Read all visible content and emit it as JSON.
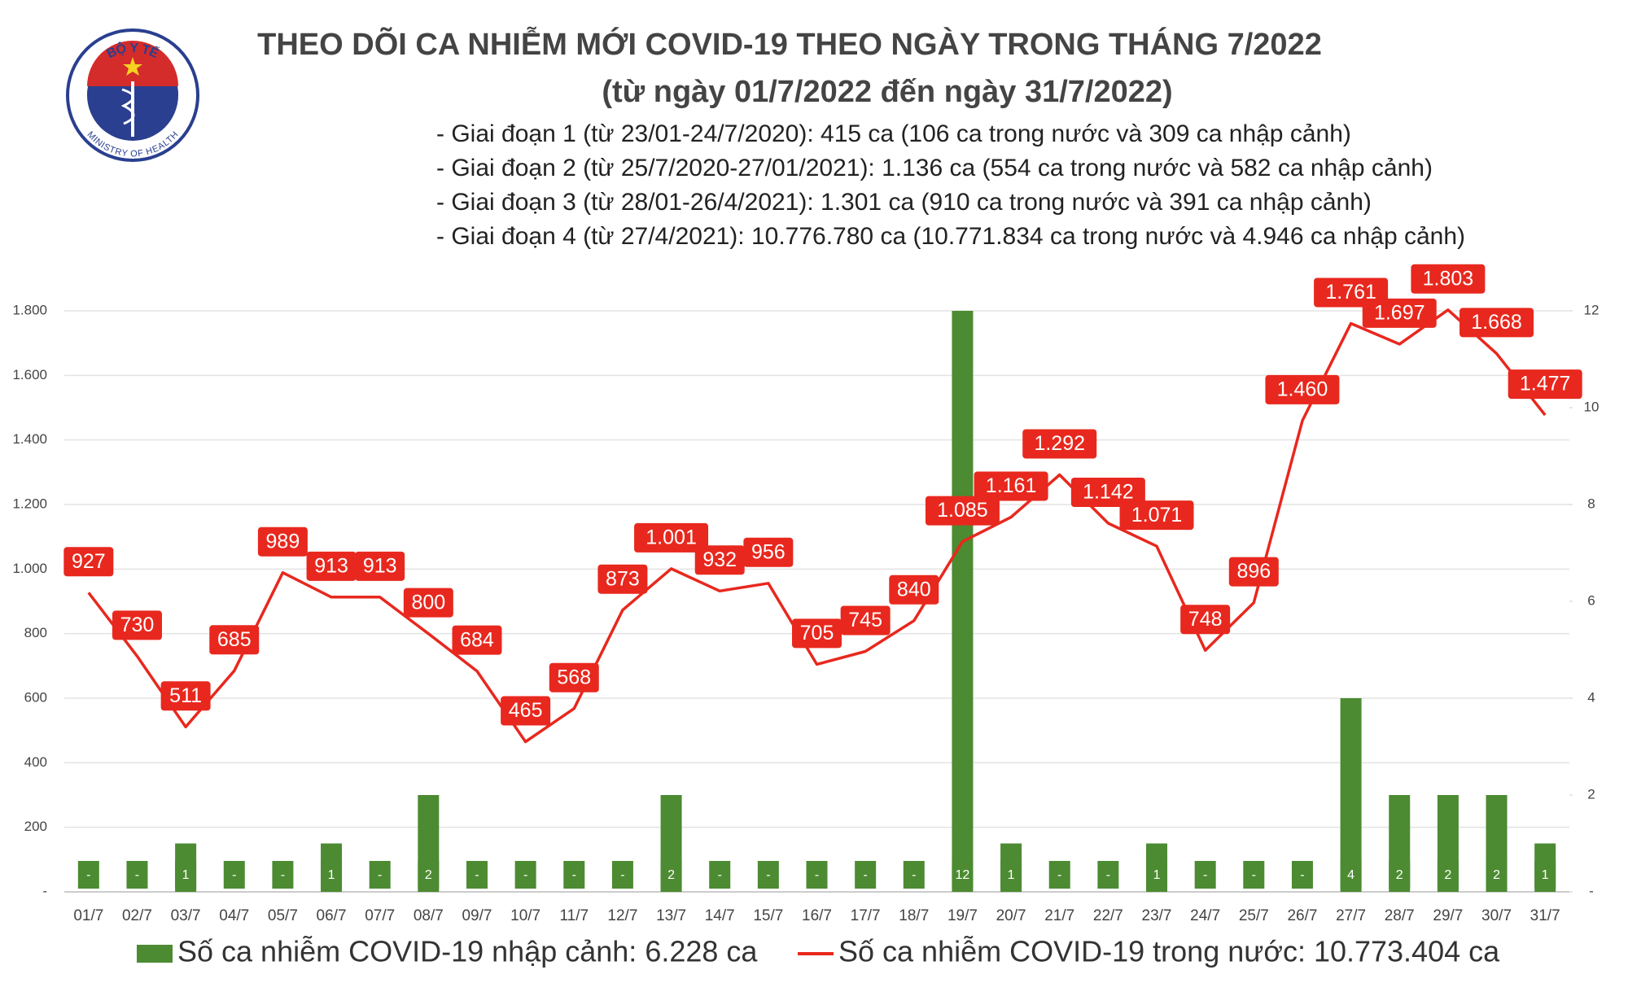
{
  "logo": {
    "top": "BỘ Y TẾ",
    "bottom": "MINISTRY OF HEALTH"
  },
  "chart_data": {
    "type": "bar",
    "title": "THEO DÕI CA NHIỄM MỚI COVID-19 THEO NGÀY TRONG THÁNG 7/2022",
    "subtitle": "(từ ngày 01/7/2022 đến ngày 31/7/2022)",
    "notes": [
      "- Giai đoạn 1 (từ 23/01-24/7/2020): 415 ca (106 ca trong nước và 309 ca nhập cảnh)",
      "- Giai đoạn 2 (từ 25/7/2020-27/01/2021): 1.136 ca (554 ca trong nước và 582 ca nhập cảnh)",
      "- Giai đoạn 3 (từ 28/01-26/4/2021): 1.301 ca (910 ca trong nước và 391 ca nhập cảnh)",
      "- Giai đoạn 4 (từ 27/4/2021): 10.776.780 ca (10.771.834 ca trong nước và 4.946 ca nhập cảnh)"
    ],
    "categories": [
      "01/7",
      "02/7",
      "03/7",
      "04/7",
      "05/7",
      "06/7",
      "07/7",
      "08/7",
      "09/7",
      "10/7",
      "11/7",
      "12/7",
      "13/7",
      "14/7",
      "15/7",
      "16/7",
      "17/7",
      "18/7",
      "19/7",
      "20/7",
      "21/7",
      "22/7",
      "23/7",
      "24/7",
      "25/7",
      "26/7",
      "27/7",
      "28/7",
      "29/7",
      "30/7",
      "31/7"
    ],
    "series": [
      {
        "name": "Số ca nhiễm COVID-19 nhập cảnh: 6.228 ca",
        "type": "bar",
        "axis": "y2",
        "color": "#4c8b32",
        "values": [
          0,
          0,
          1,
          0,
          0,
          1,
          0,
          2,
          0,
          0,
          0,
          0,
          2,
          0,
          0,
          0,
          0,
          0,
          12,
          1,
          0,
          0,
          1,
          0,
          0,
          0,
          4,
          2,
          2,
          2,
          1
        ],
        "value_labels": [
          "-",
          "-",
          "1",
          "-",
          "-",
          "1",
          "-",
          "2",
          "-",
          "-",
          "-",
          "-",
          "2",
          "-",
          "-",
          "-",
          "-",
          "-",
          "12",
          "1",
          "-",
          "-",
          "1",
          "-",
          "-",
          "-",
          "4",
          "2",
          "2",
          "2",
          "1"
        ]
      },
      {
        "name": "Số ca nhiễm COVID-19 trong nước: 10.773.404 ca",
        "type": "line",
        "color": "#e8281e",
        "values": [
          927,
          730,
          511,
          685,
          989,
          913,
          913,
          800,
          684,
          465,
          568,
          873,
          1001,
          932,
          956,
          705,
          745,
          840,
          1085,
          1161,
          1292,
          1142,
          1071,
          748,
          896,
          1460,
          1761,
          1697,
          1803,
          1668,
          1477
        ],
        "value_labels": [
          "927",
          "730",
          "511",
          "685",
          "989",
          "913",
          "913",
          "800",
          "684",
          "465",
          "568",
          "873",
          "1.001",
          "932",
          "956",
          "705",
          "745",
          "840",
          "1.085",
          "1.161",
          "1.292",
          "1.142",
          "1.071",
          "748",
          "896",
          "1.460",
          "1.761",
          "1.697",
          "1.803",
          "1.668",
          "1.477"
        ]
      }
    ],
    "ylim": [
      0,
      1800
    ],
    "yticks": [
      {
        "value": 0,
        "label": "-"
      },
      200,
      400,
      600,
      800,
      {
        "value": 1000,
        "label": "1.000"
      },
      {
        "value": 1200,
        "label": "1.200"
      },
      {
        "value": 1400,
        "label": "1.400"
      },
      {
        "value": 1600,
        "label": "1.600"
      },
      {
        "value": 1800,
        "label": "1.800"
      }
    ],
    "y2lim": [
      0,
      12
    ],
    "y2ticks": [
      {
        "value": 0,
        "label": "-"
      },
      2,
      4,
      6,
      8,
      10,
      12
    ],
    "grid": true,
    "legend": "bottom"
  }
}
